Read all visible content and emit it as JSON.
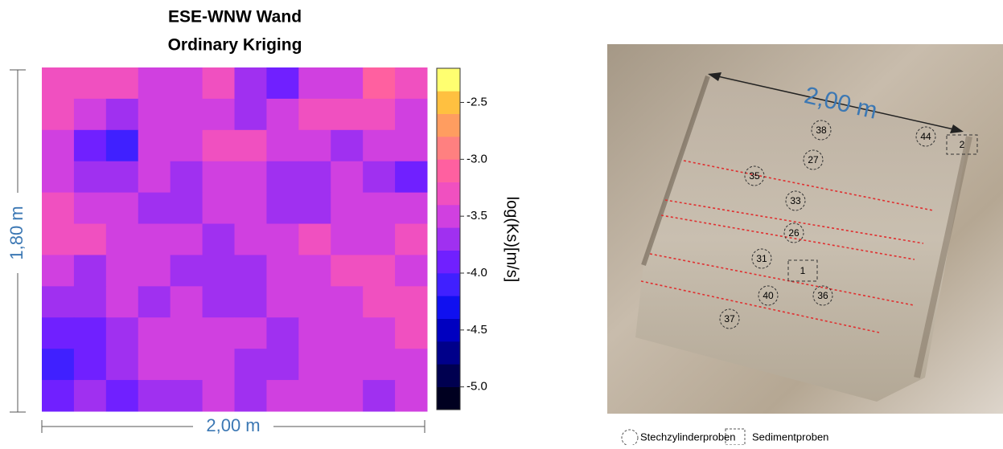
{
  "chart_data": {
    "type": "heatmap",
    "title": "ESE-WNW Wand",
    "subtitle": "Ordinary Kriging",
    "colorbar_label": "log(Ks)[m/s]",
    "width_label": "2,00 m",
    "height_label": "1,80 m",
    "levels": [
      -5.2,
      -5.0,
      -4.8,
      -4.6,
      -4.4,
      -4.2,
      -4.0,
      -3.8,
      -3.6,
      -3.4,
      -3.2,
      -3.0,
      -2.8,
      -2.6,
      -2.4,
      -2.2
    ],
    "colors": [
      "#000020",
      "#000050",
      "#00008a",
      "#0000c0",
      "#1010f0",
      "#4020ff",
      "#7020ff",
      "#a030f0",
      "#d040e0",
      "#f050c0",
      "#ff60a0",
      "#ff8080",
      "#ff9d60",
      "#ffc040",
      "#ffff70"
    ],
    "yticks": [
      -2.5,
      {
        "value": -3.0,
        "label": "-3.0"
      },
      -3.5,
      {
        "value": -4.0,
        "label": "-4.0"
      },
      -4.5,
      {
        "value": -5.0,
        "label": "-5.0"
      }
    ],
    "z": [
      [
        -3.3,
        -3.4,
        -3.4,
        -3.5,
        -3.6,
        -3.4,
        -3.8,
        -3.9,
        -3.6,
        -3.5,
        -3.2,
        -3.4
      ],
      [
        -3.4,
        -3.5,
        -3.7,
        -3.6,
        -3.5,
        -3.5,
        -3.7,
        -3.6,
        -3.4,
        -3.3,
        -3.4,
        -3.6
      ],
      [
        -3.5,
        -3.9,
        -4.1,
        -3.6,
        -3.5,
        -3.4,
        -3.4,
        -3.5,
        -3.6,
        -3.7,
        -3.5,
        -3.5
      ],
      [
        -3.5,
        -3.8,
        -3.7,
        -3.6,
        -3.7,
        -3.6,
        -3.5,
        -3.7,
        -3.8,
        -3.6,
        -3.7,
        -3.9
      ],
      [
        -3.4,
        -3.5,
        -3.6,
        -3.8,
        -3.7,
        -3.6,
        -3.6,
        -3.8,
        -3.7,
        -3.5,
        -3.6,
        -3.6
      ],
      [
        -3.4,
        -3.4,
        -3.5,
        -3.6,
        -3.5,
        -3.7,
        -3.6,
        -3.5,
        -3.4,
        -3.5,
        -3.5,
        -3.4
      ],
      [
        -3.6,
        -3.7,
        -3.6,
        -3.5,
        -3.7,
        -3.8,
        -3.7,
        -3.6,
        -3.5,
        -3.4,
        -3.4,
        -3.5
      ],
      [
        -3.8,
        -3.7,
        -3.6,
        -3.7,
        -3.6,
        -3.7,
        -3.8,
        -3.6,
        -3.5,
        -3.5,
        -3.4,
        -3.4
      ],
      [
        -3.9,
        -4.0,
        -3.7,
        -3.6,
        -3.5,
        -3.5,
        -3.6,
        -3.7,
        -3.6,
        -3.5,
        -3.5,
        -3.4
      ],
      [
        -4.1,
        -3.9,
        -3.8,
        -3.6,
        -3.5,
        -3.6,
        -3.7,
        -3.8,
        -3.6,
        -3.5,
        -3.6,
        -3.5
      ],
      [
        -4.0,
        -3.8,
        -3.9,
        -3.7,
        -3.8,
        -3.6,
        -3.7,
        -3.6,
        -3.5,
        -3.6,
        -3.7,
        -3.6
      ]
    ]
  },
  "photo": {
    "scale_label": "2,00 m",
    "cylinder_samples": [
      "38",
      "27",
      "35",
      "33",
      "26",
      "31",
      "40",
      "36",
      "37",
      "44"
    ],
    "sediment_samples": [
      "1",
      "2"
    ],
    "legend": [
      "Stechzylinderproben",
      "Sedimentproben"
    ]
  }
}
